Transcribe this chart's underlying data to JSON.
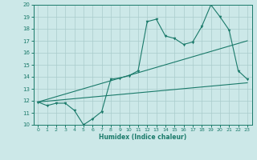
{
  "xlabel": "Humidex (Indice chaleur)",
  "xlim": [
    -0.5,
    23.5
  ],
  "ylim": [
    10,
    20
  ],
  "yticks": [
    10,
    11,
    12,
    13,
    14,
    15,
    16,
    17,
    18,
    19,
    20
  ],
  "xticks": [
    0,
    1,
    2,
    3,
    4,
    5,
    6,
    7,
    8,
    9,
    10,
    11,
    12,
    13,
    14,
    15,
    16,
    17,
    18,
    19,
    20,
    21,
    22,
    23
  ],
  "bg_color": "#cce8e8",
  "grid_color": "#aacccc",
  "line_color": "#1a7a6a",
  "line1_x": [
    0,
    1,
    2,
    3,
    4,
    5,
    6,
    7,
    8,
    9,
    10,
    11,
    12,
    13,
    14,
    15,
    16,
    17,
    18,
    19,
    20,
    21,
    22,
    23
  ],
  "line1_y": [
    11.9,
    11.6,
    11.8,
    11.8,
    11.2,
    10.0,
    10.5,
    11.1,
    13.8,
    13.9,
    14.1,
    14.5,
    18.6,
    18.8,
    17.4,
    17.2,
    16.7,
    16.9,
    18.2,
    20.0,
    19.0,
    17.9,
    14.5,
    13.8
  ],
  "line2_x": [
    0,
    23
  ],
  "line2_y": [
    11.9,
    17.0
  ],
  "line3_x": [
    0,
    23
  ],
  "line3_y": [
    11.9,
    13.5
  ]
}
